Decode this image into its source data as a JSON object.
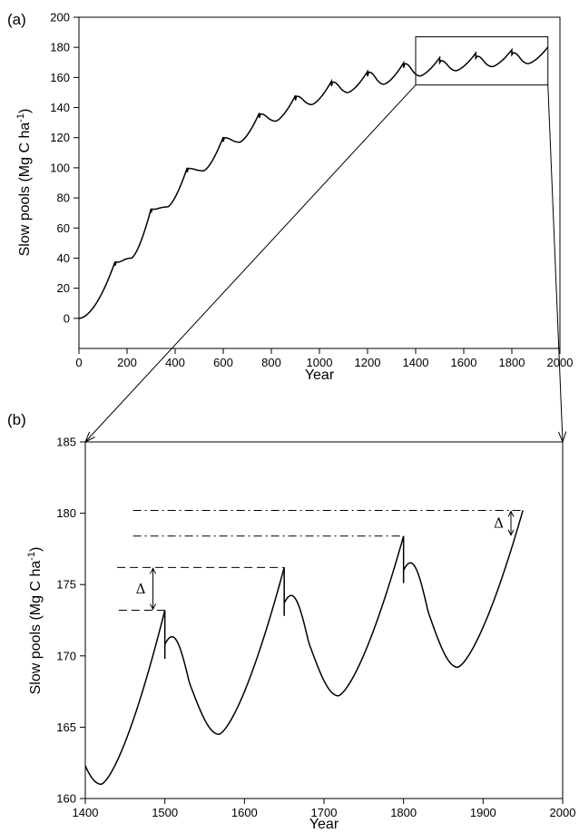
{
  "chart_data": [
    {
      "type": "line",
      "panel_label": "(a)",
      "xlabel": "Year",
      "ylabel_main": "Slow pools (Mg C ha",
      "ylabel_sup": "-1",
      "ylabel_close": ")",
      "xlim": [
        0,
        2000
      ],
      "ylim": [
        -20,
        200
      ],
      "xticks": [
        "0",
        "200",
        "400",
        "600",
        "800",
        "1000",
        "1200",
        "1400",
        "1600",
        "1800",
        "2000"
      ],
      "yticks": [
        "0",
        "20",
        "40",
        "60",
        "80",
        "100",
        "120",
        "140",
        "160",
        "180",
        "200"
      ],
      "xtick_values": [
        0,
        200,
        400,
        600,
        800,
        1000,
        1200,
        1400,
        1600,
        1800,
        2000
      ],
      "ytick_values": [
        0,
        20,
        40,
        60,
        80,
        100,
        120,
        140,
        160,
        180,
        200
      ],
      "grid": false,
      "cycles": [
        {
          "start": 0,
          "end": 150,
          "peak": 37.6,
          "drop": 35.0,
          "jump": 37.4,
          "min": 0
        },
        {
          "start": 150,
          "end": 300,
          "peak": 72.9,
          "drop": 70.2,
          "jump": 72.5,
          "min": 40
        },
        {
          "start": 300,
          "end": 450,
          "peak": 100.0,
          "drop": 97.0,
          "jump": 99.5,
          "min": 74
        },
        {
          "start": 450,
          "end": 600,
          "peak": 120.4,
          "drop": 117.3,
          "jump": 119.8,
          "min": 98
        },
        {
          "start": 600,
          "end": 750,
          "peak": 136.4,
          "drop": 133.2,
          "jump": 135.5,
          "min": 117
        },
        {
          "start": 750,
          "end": 900,
          "peak": 148.0,
          "drop": 144.8,
          "jump": 147.2,
          "min": 131
        },
        {
          "start": 900,
          "end": 1050,
          "peak": 157.5,
          "drop": 154.3,
          "jump": 156.6,
          "min": 142
        },
        {
          "start": 1050,
          "end": 1200,
          "peak": 164.0,
          "drop": 160.8,
          "jump": 163.1,
          "min": 150
        },
        {
          "start": 1200,
          "end": 1350,
          "peak": 169.7,
          "drop": 166.5,
          "jump": 168.7,
          "min": 155.5
        },
        {
          "start": 1350,
          "end": 1500,
          "peak": 173.2,
          "drop": 169.8,
          "jump": 170.8,
          "min": 161.0
        },
        {
          "start": 1500,
          "end": 1650,
          "peak": 176.2,
          "drop": 172.8,
          "jump": 173.7,
          "min": 164.5
        },
        {
          "start": 1650,
          "end": 1800,
          "peak": 178.4,
          "drop": 175.1,
          "jump": 176.0,
          "min": 167.2
        },
        {
          "start": 1800,
          "end": 1950,
          "peak": 180.2,
          "drop": null,
          "jump": null,
          "min": 169.2
        }
      ],
      "zoom_box": {
        "x": [
          1400,
          1950
        ],
        "y": [
          155,
          187
        ]
      }
    },
    {
      "type": "line",
      "panel_label": "(b)",
      "xlabel": "Year",
      "ylabel_main": "Slow pools (Mg C ha",
      "ylabel_sup": "-1",
      "ylabel_close": ")",
      "xlim": [
        1400,
        2000
      ],
      "ylim": [
        160,
        185
      ],
      "xticks": [
        "1400",
        "1500",
        "1600",
        "1700",
        "1800",
        "1900",
        "2000"
      ],
      "yticks": [
        "160",
        "165",
        "170",
        "175",
        "180",
        "185"
      ],
      "xtick_values": [
        1400,
        1500,
        1600,
        1700,
        1800,
        1900,
        2000
      ],
      "ytick_values": [
        160,
        165,
        170,
        175,
        180,
        185
      ],
      "grid": false,
      "start_value": 162.3,
      "cycles": [
        {
          "start": 1350,
          "end": 1500,
          "peak": 173.2,
          "drop": 169.8,
          "jump": 170.8,
          "min": 161.0,
          "min_year": 1420
        },
        {
          "start": 1500,
          "end": 1650,
          "peak": 176.2,
          "drop": 172.8,
          "jump": 173.7,
          "min": 164.5,
          "min_year": 1568
        },
        {
          "start": 1650,
          "end": 1800,
          "peak": 178.4,
          "drop": 175.1,
          "jump": 176.0,
          "min": 167.2,
          "min_year": 1718
        },
        {
          "start": 1800,
          "end": 1950,
          "peak": 180.2,
          "drop": null,
          "jump": null,
          "min": 169.2,
          "min_year": 1868
        }
      ],
      "annotations": [
        {
          "symbol": "Δ",
          "x": 1485,
          "y_low": 173.2,
          "y_high": 176.2
        },
        {
          "symbol": "Δ",
          "x": 1935,
          "y_low": 178.4,
          "y_high": 180.2
        }
      ]
    }
  ]
}
